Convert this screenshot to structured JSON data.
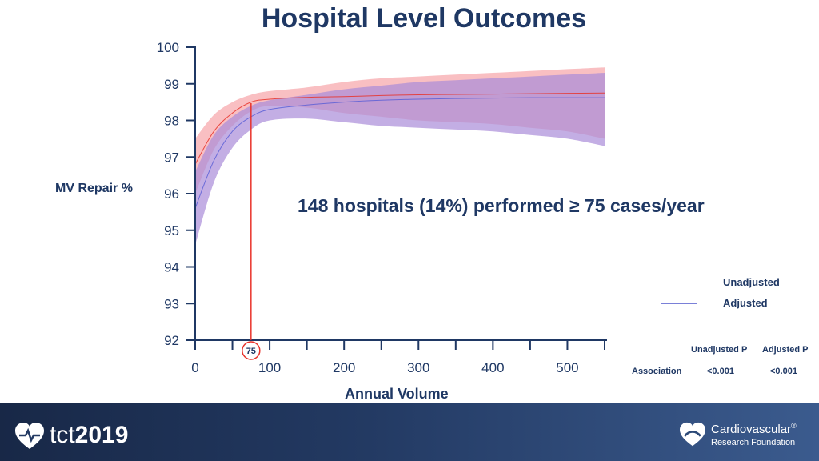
{
  "title": "Hospital Level Outcomes",
  "annotation": "148 hospitals (14%) performed ≥ 75 cases/year",
  "chart_data": {
    "type": "line",
    "title": "Hospital Level Outcomes",
    "xlabel": "Annual Volume",
    "ylabel": "MV Repair %",
    "xlim": [
      0,
      550
    ],
    "ylim": [
      92,
      100
    ],
    "x_ticks": [
      0,
      100,
      200,
      300,
      400,
      500
    ],
    "y_ticks": [
      92,
      93,
      94,
      95,
      96,
      97,
      98,
      99,
      100
    ],
    "grid": false,
    "legend_position": "right",
    "reference_line": {
      "x": 75,
      "label": "75"
    },
    "series": [
      {
        "name": "Unadjusted",
        "color": "#e8322a",
        "band_color": "#f7a9ae",
        "x": [
          0,
          25,
          50,
          75,
          100,
          150,
          200,
          250,
          300,
          350,
          400,
          450,
          500,
          550
        ],
        "y": [
          96.8,
          97.7,
          98.2,
          98.5,
          98.58,
          98.63,
          98.65,
          98.68,
          98.7,
          98.71,
          98.72,
          98.73,
          98.74,
          98.75
        ],
        "lower": [
          96.0,
          97.2,
          97.85,
          98.25,
          98.4,
          98.35,
          98.2,
          98.1,
          98.0,
          97.95,
          97.9,
          97.8,
          97.7,
          97.5
        ],
        "upper": [
          97.5,
          98.15,
          98.5,
          98.7,
          98.8,
          98.9,
          99.05,
          99.15,
          99.2,
          99.25,
          99.3,
          99.35,
          99.4,
          99.45
        ]
      },
      {
        "name": "Adjusted",
        "color": "#5b5fd6",
        "band_color": "#a98bd8",
        "x": [
          0,
          25,
          50,
          75,
          100,
          150,
          200,
          250,
          300,
          350,
          400,
          450,
          500,
          550
        ],
        "y": [
          95.6,
          96.9,
          97.7,
          98.1,
          98.3,
          98.42,
          98.5,
          98.55,
          98.58,
          98.6,
          98.61,
          98.62,
          98.62,
          98.62
        ],
        "lower": [
          94.6,
          96.3,
          97.25,
          97.75,
          98.0,
          98.05,
          97.95,
          97.85,
          97.8,
          97.75,
          97.7,
          97.6,
          97.5,
          97.3
        ],
        "upper": [
          96.6,
          97.6,
          98.1,
          98.4,
          98.55,
          98.7,
          98.85,
          98.95,
          99.05,
          99.1,
          99.15,
          99.2,
          99.25,
          99.3
        ]
      }
    ]
  },
  "legend": {
    "unadjusted": "Unadjusted",
    "adjusted": "Adjusted"
  },
  "p_table": {
    "col1": "Unadjusted P",
    "col2": "Adjusted P",
    "row_label": "Association",
    "val1": "<0.001",
    "val2": "<0.001"
  },
  "footer": {
    "left_logo_prefix": "tct",
    "left_logo_year": "2019",
    "right_logo_line1": "Cardiovascular",
    "right_logo_line2": "Research Foundation",
    "registered_mark": "®"
  }
}
